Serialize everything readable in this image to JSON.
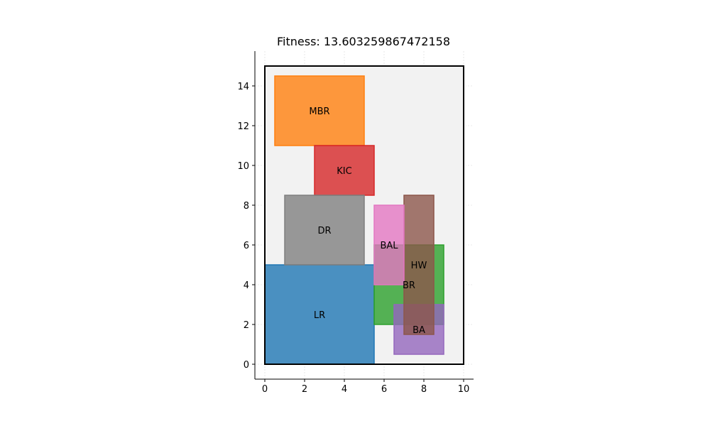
{
  "chart_data": {
    "type": "rect-layout",
    "title": "Fitness: 13.603259867472158",
    "xlim": [
      -0.5,
      10.5
    ],
    "ylim": [
      -0.75,
      15.75
    ],
    "xticks": [
      0,
      2,
      4,
      6,
      8,
      10
    ],
    "yticks": [
      0,
      2,
      4,
      6,
      8,
      10,
      12,
      14
    ],
    "grid": true,
    "boundary": {
      "x": 0,
      "y": 0,
      "width": 10,
      "height": 15,
      "fill": "#f2f2f2",
      "stroke": "#000000"
    },
    "rooms": [
      {
        "label": "LR",
        "x": 0,
        "y": 0,
        "width": 5.5,
        "height": 5,
        "color": "#1f77b4"
      },
      {
        "label": "MBR",
        "x": 0.5,
        "y": 11,
        "width": 4.5,
        "height": 3.5,
        "color": "#ff7f0e"
      },
      {
        "label": "BR",
        "x": 5.5,
        "y": 2,
        "width": 3.5,
        "height": 4,
        "color": "#2ca02c"
      },
      {
        "label": "KIC",
        "x": 2.5,
        "y": 8.5,
        "width": 3,
        "height": 2.5,
        "color": "#d62728"
      },
      {
        "label": "BA",
        "x": 6.5,
        "y": 0.5,
        "width": 2.5,
        "height": 2.5,
        "color": "#9467bd"
      },
      {
        "label": "HW",
        "x": 7,
        "y": 1.5,
        "width": 1.5,
        "height": 7,
        "color": "#8c564b"
      },
      {
        "label": "BAL",
        "x": 5.5,
        "y": 4,
        "width": 1.5,
        "height": 4,
        "color": "#e377c2"
      },
      {
        "label": "DR",
        "x": 1,
        "y": 5,
        "width": 4,
        "height": 3.5,
        "color": "#7f7f7f"
      }
    ]
  }
}
